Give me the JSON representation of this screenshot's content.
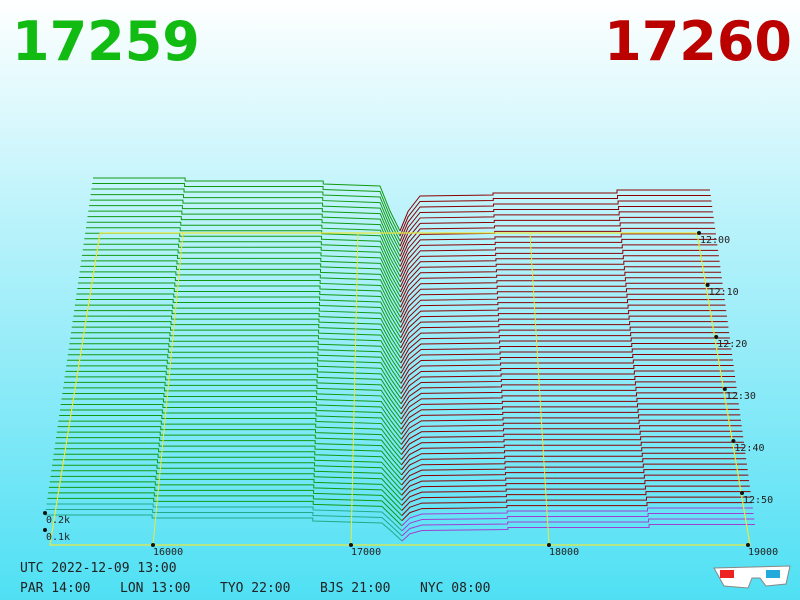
{
  "header": {
    "bid": "17259",
    "ask": "17260"
  },
  "price_axis": {
    "ticks": [
      "16000",
      "17000",
      "18000",
      "19000"
    ]
  },
  "volume_axis": {
    "ticks": [
      "0.2k",
      "0.1k"
    ]
  },
  "time_axis": {
    "ticks": [
      "12:00",
      "12:10",
      "12:20",
      "12:30",
      "12:40",
      "12:50"
    ]
  },
  "footer": {
    "utc": "UTC 2022-12-09 13:00",
    "clocks": [
      "PAR 14:00",
      "LON 13:00",
      "TYO 22:00",
      "BJS 21:00",
      "NYC 08:00"
    ]
  }
}
